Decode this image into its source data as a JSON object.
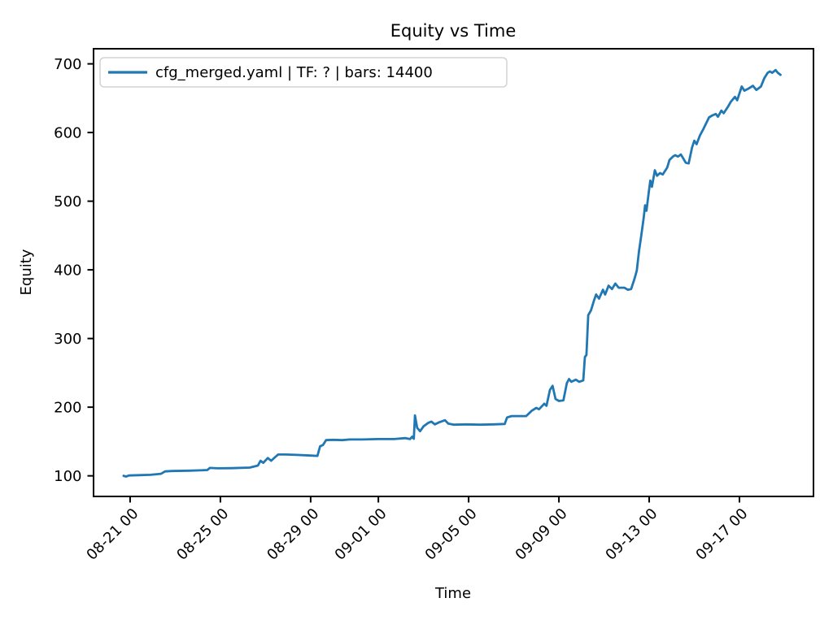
{
  "chart_data": {
    "type": "line",
    "title": "Equity vs Time",
    "xlabel": "Time",
    "ylabel": "Equity",
    "grid": false,
    "legend": {
      "position": "upper left",
      "entries": [
        {
          "label": "cfg_merged.yaml | TF: ? | bars: 14400",
          "color": "#1f77b4"
        }
      ]
    },
    "x_axis": {
      "unit": "days since 08-21 00:00",
      "range": [
        -1.62,
        30.28
      ],
      "ticks": [
        {
          "value": 0,
          "label": "08-21 00"
        },
        {
          "value": 4,
          "label": "08-25 00"
        },
        {
          "value": 8,
          "label": "08-29 00"
        },
        {
          "value": 11,
          "label": "09-01 00"
        },
        {
          "value": 15,
          "label": "09-05 00"
        },
        {
          "value": 19,
          "label": "09-09 00"
        },
        {
          "value": 23,
          "label": "09-13 00"
        },
        {
          "value": 27,
          "label": "09-17 00"
        }
      ]
    },
    "y_axis": {
      "range": [
        70,
        722
      ],
      "ticks": [
        100,
        200,
        300,
        400,
        500,
        600,
        700
      ]
    },
    "series": [
      {
        "name": "cfg_merged.yaml | TF: ? | bars: 14400",
        "color": "#1f77b4",
        "points": [
          [
            -0.29,
            100
          ],
          [
            -0.18,
            99
          ],
          [
            -0.05,
            100.5
          ],
          [
            0.4,
            101
          ],
          [
            0.9,
            101.5
          ],
          [
            1.37,
            103
          ],
          [
            1.55,
            106.5
          ],
          [
            1.85,
            107
          ],
          [
            2.6,
            107.5
          ],
          [
            3.1,
            108
          ],
          [
            3.42,
            108.5
          ],
          [
            3.53,
            111.5
          ],
          [
            3.9,
            111
          ],
          [
            4.5,
            111.2
          ],
          [
            5.3,
            112
          ],
          [
            5.66,
            115
          ],
          [
            5.78,
            122
          ],
          [
            5.9,
            119
          ],
          [
            6.1,
            126
          ],
          [
            6.25,
            122
          ],
          [
            6.45,
            128
          ],
          [
            6.56,
            131
          ],
          [
            6.9,
            131
          ],
          [
            7.4,
            130.5
          ],
          [
            8.0,
            129.5
          ],
          [
            8.3,
            129
          ],
          [
            8.42,
            143
          ],
          [
            8.55,
            145
          ],
          [
            8.68,
            152
          ],
          [
            9.0,
            152.5
          ],
          [
            9.4,
            152
          ],
          [
            9.73,
            153
          ],
          [
            10.3,
            153
          ],
          [
            11.0,
            153.5
          ],
          [
            11.7,
            153.5
          ],
          [
            12.2,
            155
          ],
          [
            12.4,
            153.5
          ],
          [
            12.5,
            157
          ],
          [
            12.57,
            154
          ],
          [
            12.62,
            188
          ],
          [
            12.72,
            170
          ],
          [
            12.85,
            165
          ],
          [
            13.0,
            172
          ],
          [
            13.2,
            177
          ],
          [
            13.35,
            179
          ],
          [
            13.5,
            175
          ],
          [
            13.7,
            178
          ],
          [
            13.95,
            181
          ],
          [
            14.1,
            176
          ],
          [
            14.35,
            174.5
          ],
          [
            14.9,
            175
          ],
          [
            15.5,
            174.5
          ],
          [
            16.1,
            175
          ],
          [
            16.6,
            175.5
          ],
          [
            16.7,
            185
          ],
          [
            16.9,
            187
          ],
          [
            17.55,
            187
          ],
          [
            17.8,
            195
          ],
          [
            18.0,
            199
          ],
          [
            18.12,
            197
          ],
          [
            18.35,
            205
          ],
          [
            18.45,
            202
          ],
          [
            18.6,
            225
          ],
          [
            18.72,
            231
          ],
          [
            18.85,
            212
          ],
          [
            19.0,
            209
          ],
          [
            19.2,
            210
          ],
          [
            19.35,
            235
          ],
          [
            19.45,
            241
          ],
          [
            19.55,
            237
          ],
          [
            19.75,
            240
          ],
          [
            19.9,
            237
          ],
          [
            20.08,
            239
          ],
          [
            20.15,
            273
          ],
          [
            20.22,
            276
          ],
          [
            20.3,
            334
          ],
          [
            20.42,
            341
          ],
          [
            20.55,
            355
          ],
          [
            20.65,
            364
          ],
          [
            20.78,
            358
          ],
          [
            20.95,
            371
          ],
          [
            21.05,
            364
          ],
          [
            21.2,
            377
          ],
          [
            21.35,
            372
          ],
          [
            21.5,
            380
          ],
          [
            21.65,
            374
          ],
          [
            21.9,
            374
          ],
          [
            22.05,
            371
          ],
          [
            22.2,
            372
          ],
          [
            22.35,
            387
          ],
          [
            22.45,
            399
          ],
          [
            22.55,
            427
          ],
          [
            22.65,
            450
          ],
          [
            22.75,
            474
          ],
          [
            22.82,
            494
          ],
          [
            22.88,
            486
          ],
          [
            22.97,
            510
          ],
          [
            23.05,
            530
          ],
          [
            23.12,
            521
          ],
          [
            23.25,
            545
          ],
          [
            23.35,
            537
          ],
          [
            23.48,
            541
          ],
          [
            23.6,
            539
          ],
          [
            23.8,
            549
          ],
          [
            23.9,
            560
          ],
          [
            24.05,
            565
          ],
          [
            24.15,
            567
          ],
          [
            24.28,
            565
          ],
          [
            24.4,
            568
          ],
          [
            24.5,
            563
          ],
          [
            24.62,
            556
          ],
          [
            24.75,
            555
          ],
          [
            24.9,
            578
          ],
          [
            25.0,
            588
          ],
          [
            25.1,
            583
          ],
          [
            25.25,
            596
          ],
          [
            25.4,
            605
          ],
          [
            25.52,
            613
          ],
          [
            25.65,
            622
          ],
          [
            25.8,
            625
          ],
          [
            25.95,
            627
          ],
          [
            26.05,
            623
          ],
          [
            26.2,
            632
          ],
          [
            26.3,
            628
          ],
          [
            26.5,
            638
          ],
          [
            26.62,
            645
          ],
          [
            26.8,
            652
          ],
          [
            26.9,
            647
          ],
          [
            27.1,
            667
          ],
          [
            27.22,
            661
          ],
          [
            27.4,
            664
          ],
          [
            27.6,
            668
          ],
          [
            27.75,
            662
          ],
          [
            27.95,
            667
          ],
          [
            28.1,
            679
          ],
          [
            28.25,
            687
          ],
          [
            28.35,
            689
          ],
          [
            28.45,
            687
          ],
          [
            28.6,
            691
          ],
          [
            28.7,
            687
          ],
          [
            28.82,
            684
          ]
        ]
      }
    ]
  }
}
